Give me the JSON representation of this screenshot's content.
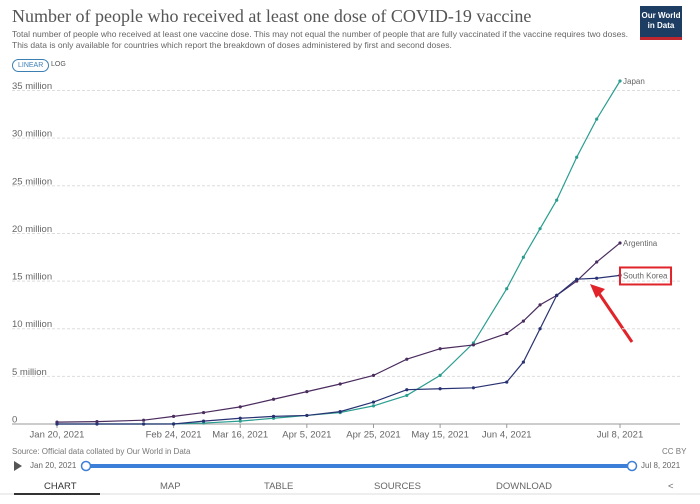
{
  "chart_data": {
    "type": "line",
    "title": "Number of people who received at least one dose of COVID-19 vaccine",
    "subtitle": [
      "Total number of people who received at least one vaccine dose. This may not equal the number of people that are fully vaccinated if the vaccine requires two doses.",
      "This data is only available for countries which report the breakdown of doses administered by first and second doses."
    ],
    "source": "Source: Official data collated by Our World in Data",
    "x": [
      "2021-01-20",
      "2021-02-01",
      "2021-02-15",
      "2021-02-24",
      "2021-03-05",
      "2021-03-16",
      "2021-03-26",
      "2021-04-05",
      "2021-04-15",
      "2021-04-25",
      "2021-05-05",
      "2021-05-15",
      "2021-05-25",
      "2021-06-04",
      "2021-06-09",
      "2021-06-14",
      "2021-06-19",
      "2021-06-25",
      "2021-07-01",
      "2021-07-08"
    ],
    "xlim": [
      "2021-01-20",
      "2021-07-08"
    ],
    "xticks": [
      {
        "value": "2021-01-20",
        "label": "Jan 20, 2021"
      },
      {
        "value": "2021-02-24",
        "label": "Feb 24, 2021"
      },
      {
        "value": "2021-03-16",
        "label": "Mar 16, 2021"
      },
      {
        "value": "2021-04-05",
        "label": "Apr 5, 2021"
      },
      {
        "value": "2021-04-25",
        "label": "Apr 25, 2021"
      },
      {
        "value": "2021-05-15",
        "label": "May 15, 2021"
      },
      {
        "value": "2021-06-04",
        "label": "Jun 4, 2021"
      },
      {
        "value": "2021-07-08",
        "label": "Jul 8, 2021"
      }
    ],
    "ylim": [
      0,
      36000000
    ],
    "yticks": [
      0,
      {
        "value": 5000000,
        "label": "5 million"
      },
      {
        "value": 10000000,
        "label": "10 million"
      },
      {
        "value": 15000000,
        "label": "15 million"
      },
      {
        "value": 20000000,
        "label": "20 million"
      },
      {
        "value": 25000000,
        "label": "25 million"
      },
      {
        "value": 30000000,
        "label": "30 million"
      },
      {
        "value": 35000000,
        "label": "35 million"
      }
    ],
    "grid": true,
    "series": [
      {
        "name": "Japan",
        "color": "#2a9d8f",
        "values": [
          0,
          0,
          0,
          10000,
          100000,
          300000,
          600000,
          900000,
          1200000,
          1900000,
          3000000,
          5100000,
          8500000,
          14200000,
          17500000,
          20500000,
          23500000,
          28000000,
          32000000,
          36000000
        ]
      },
      {
        "name": "Argentina",
        "color": "#4a2c5e",
        "values": [
          200000,
          250000,
          400000,
          800000,
          1200000,
          1800000,
          2600000,
          3400000,
          4200000,
          5100000,
          6800000,
          7900000,
          8300000,
          9500000,
          10800000,
          12500000,
          13500000,
          15000000,
          17000000,
          19000000
        ]
      },
      {
        "name": "South Korea",
        "color": "#283272",
        "values": [
          0,
          0,
          0,
          0,
          300000,
          600000,
          800000,
          900000,
          1300000,
          2300000,
          3600000,
          3700000,
          3800000,
          4400000,
          6500000,
          10000000,
          13500000,
          15200000,
          15300000,
          15600000
        ],
        "highlight": true
      }
    ]
  },
  "ui": {
    "scale_buttons": [
      "LINEAR",
      "LOG"
    ],
    "logo": "Our World in Data",
    "license": "CC BY",
    "timeline": [
      "Jan 20, 2021",
      "Jul 8, 2021"
    ],
    "tabs": [
      "CHART",
      "MAP",
      "TABLE",
      "SOURCES",
      "DOWNLOAD"
    ]
  }
}
